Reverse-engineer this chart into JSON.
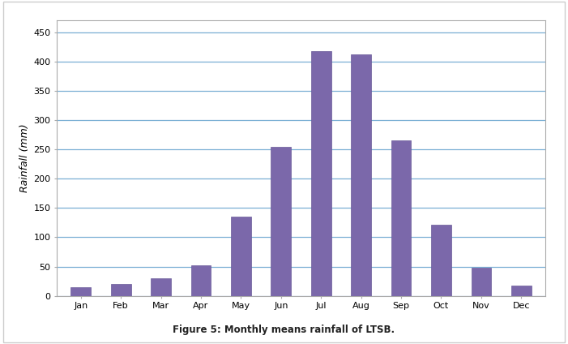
{
  "categories": [
    "Jan",
    "Feb",
    "Mar",
    "Apr",
    "May",
    "Jun",
    "Jul",
    "Aug",
    "Sep",
    "Oct",
    "Nov",
    "Dec"
  ],
  "values": [
    15,
    20,
    30,
    52,
    135,
    255,
    418,
    413,
    265,
    122,
    48,
    18
  ],
  "bar_color": "#7B68AA",
  "bar_edge_color": "#6A5A99",
  "ylabel": "Rainfall (mm)",
  "ylim": [
    0,
    470
  ],
  "yticks": [
    0,
    50,
    100,
    150,
    200,
    250,
    300,
    350,
    400,
    450
  ],
  "grid_color": "#7AAFD4",
  "grid_linewidth": 0.9,
  "caption": "Figure 5: Monthly means rainfall of LTSB.",
  "caption_fontsize": 8.5,
  "bg_color": "#FFFFFF",
  "plot_bg_color": "#FFFFFF",
  "tick_fontsize": 8,
  "ylabel_fontsize": 9,
  "spine_color": "#AAAAAA",
  "outer_border_color": "#CCCCCC"
}
